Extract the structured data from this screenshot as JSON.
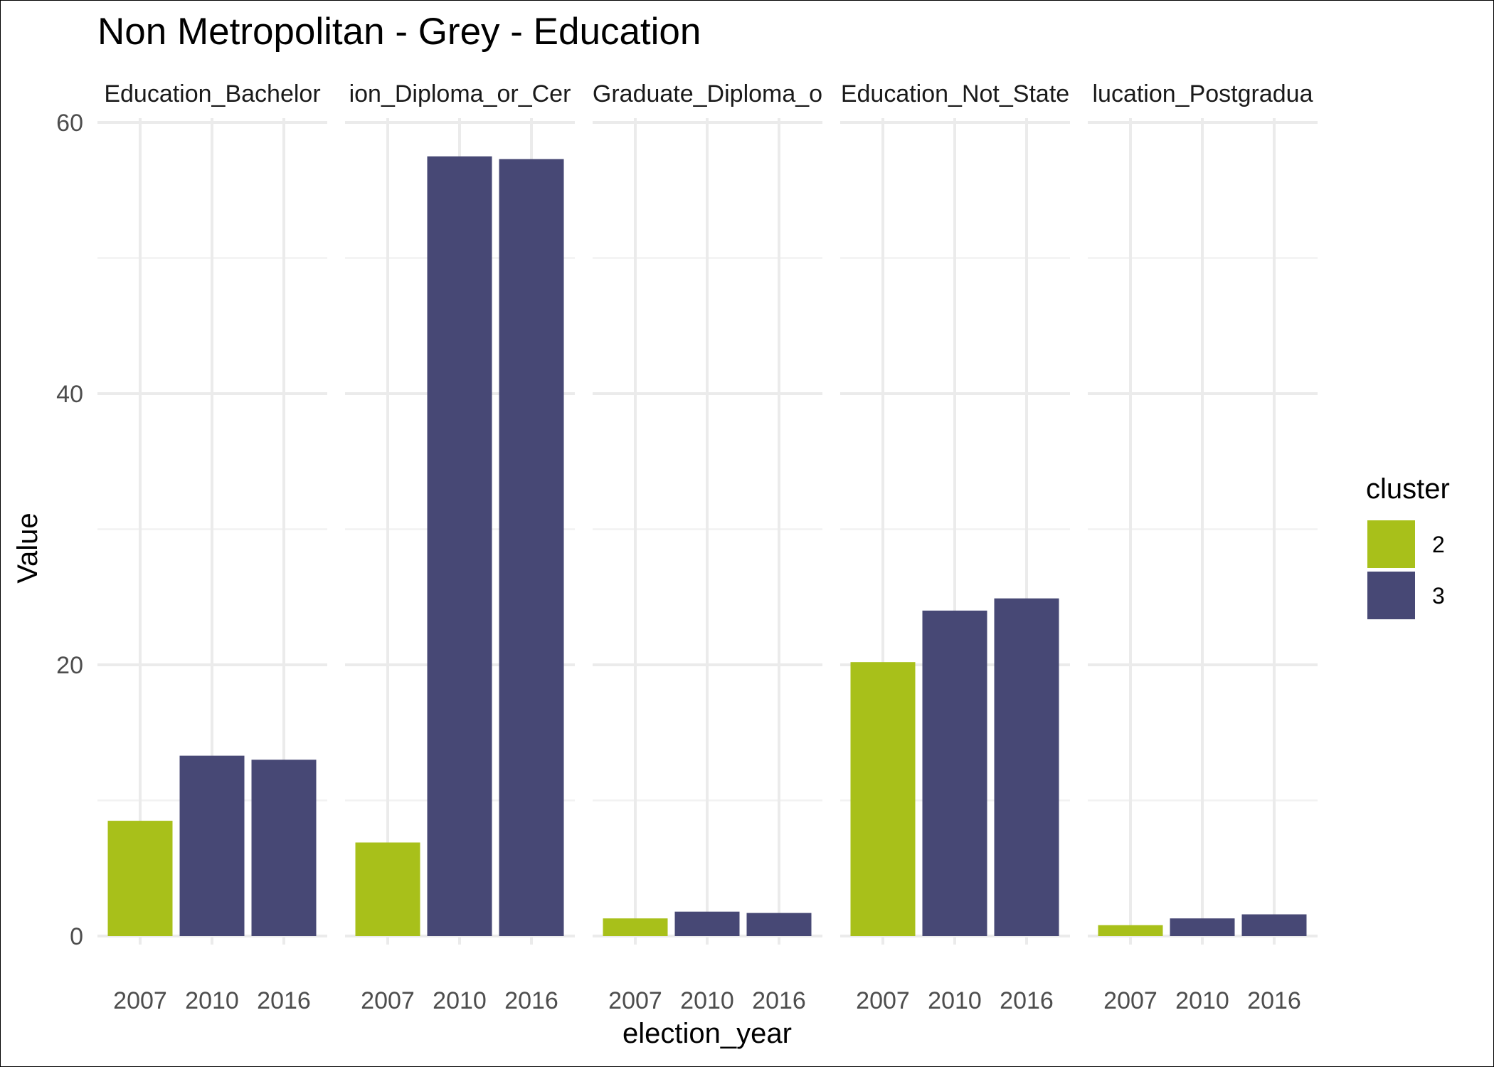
{
  "chart_data": {
    "type": "bar",
    "title": "Non Metropolitan - Grey - Education",
    "xlabel": "election_year",
    "ylabel": "Value",
    "ylim": [
      0,
      60
    ],
    "y_ticks": [
      0,
      20,
      40,
      60
    ],
    "categories": [
      "2007",
      "2010",
      "2016"
    ],
    "grid": true,
    "legend": {
      "title": "cluster",
      "placement": "right",
      "entries": [
        {
          "label": "2",
          "color": "#a8c01a"
        },
        {
          "label": "3",
          "color": "#474875"
        }
      ]
    },
    "facets": [
      {
        "label": "Education_Bachelor",
        "values": [
          8.5,
          13.3,
          13.0
        ],
        "clusters": [
          "2",
          "3",
          "3"
        ]
      },
      {
        "label": "ion_Diploma_or_Cer",
        "values": [
          6.9,
          57.5,
          57.3
        ],
        "clusters": [
          "2",
          "3",
          "3"
        ]
      },
      {
        "label": "Graduate_Diploma_o",
        "values": [
          1.3,
          1.8,
          1.7
        ],
        "clusters": [
          "2",
          "3",
          "3"
        ]
      },
      {
        "label": "Education_Not_State",
        "values": [
          20.2,
          24.0,
          24.9
        ],
        "clusters": [
          "2",
          "3",
          "3"
        ]
      },
      {
        "label": "lucation_Postgradua",
        "values": [
          0.8,
          1.3,
          1.6
        ],
        "clusters": [
          "2",
          "3",
          "3"
        ]
      }
    ]
  }
}
